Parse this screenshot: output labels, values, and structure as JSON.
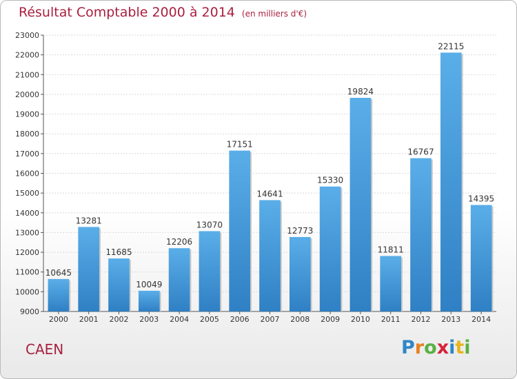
{
  "header": {
    "title": "Résultat Comptable 2000 à 2014",
    "subtitle": "(en milliers d'€)"
  },
  "footer": {
    "city": "CAEN",
    "brand": "Proxiti",
    "brand_letters": [
      {
        "ch": "P",
        "color": "#2e86c8"
      },
      {
        "ch": "r",
        "color": "#e8801e"
      },
      {
        "ch": "o",
        "color": "#5ab043"
      },
      {
        "ch": "x",
        "color": "#d6233c"
      },
      {
        "ch": "i",
        "color": "#2e86c8"
      },
      {
        "ch": "t",
        "color": "#e8b51e"
      },
      {
        "ch": "i",
        "color": "#5ab043"
      }
    ]
  },
  "colors": {
    "accent": "#a8203f",
    "bar_light": "#5aaee8",
    "bar_dark": "#2f86c8"
  },
  "chart_data": {
    "type": "bar",
    "categories": [
      "2000",
      "2001",
      "2002",
      "2003",
      "2004",
      "2005",
      "2006",
      "2007",
      "2008",
      "2009",
      "2010",
      "2011",
      "2012",
      "2013",
      "2014"
    ],
    "values": [
      10645,
      13281,
      11685,
      10049,
      12206,
      13070,
      17151,
      14641,
      12773,
      15330,
      19824,
      11811,
      16767,
      22115,
      14395
    ],
    "ylim": [
      9000,
      23000
    ],
    "yticks": [
      "9000",
      "10000",
      "11000",
      "12000",
      "13000",
      "14000",
      "15000",
      "16000",
      "17000",
      "18000",
      "19000",
      "20000",
      "21000",
      "22000",
      "23000"
    ],
    "grid": true,
    "xlabel": "",
    "ylabel": ""
  }
}
